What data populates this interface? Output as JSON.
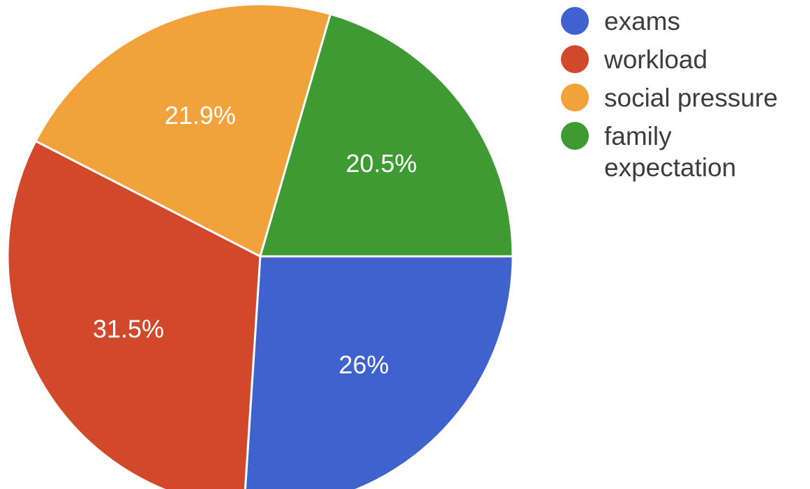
{
  "chart_data": {
    "type": "pie",
    "title": "",
    "slices": [
      {
        "label": "exams",
        "value": 26,
        "display": "26%",
        "color": "#3f62cc"
      },
      {
        "label": "workload",
        "value": 31.5,
        "display": "31.5%",
        "color": "#d1492a"
      },
      {
        "label": "social pressure",
        "value": 21.9,
        "display": "21.9%",
        "color": "#f2a23a"
      },
      {
        "label": "family expectation",
        "value": 20.5,
        "display": "20.5%",
        "color": "#3f9a34"
      }
    ],
    "start_angle_deg": 90,
    "direction": "clockwise",
    "legend_position": "top-right"
  }
}
